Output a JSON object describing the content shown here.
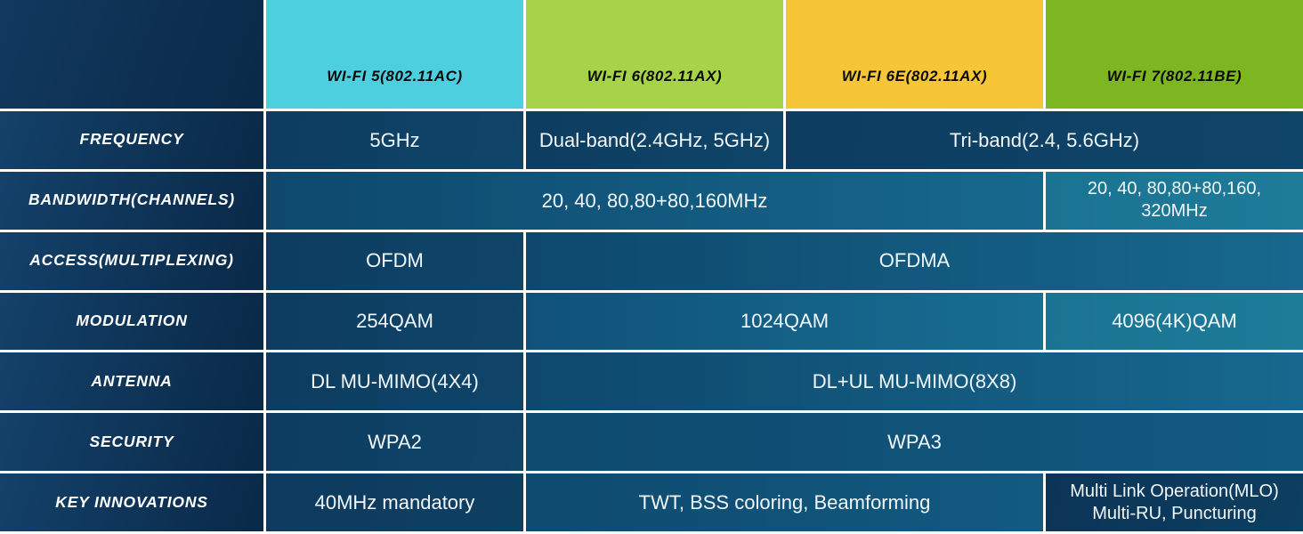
{
  "colors": {
    "header_wifi5": "#4ECFE0",
    "header_wifi6": "#A6D348",
    "header_wifi6e": "#F6C636",
    "header_wifi7": "#7CB721",
    "highlight_cell_teal": "#1C7493",
    "row_header_navy": "#0D3456",
    "grid_line": "#FFFFFF",
    "cell_text": "#F2F7FA",
    "header_text": "#0B0B0B"
  },
  "columns": [
    {
      "label": "WI-FI 5(802.11AC)",
      "color": "#4ECFE0"
    },
    {
      "label": "WI-FI 6(802.11AX)",
      "color": "#A6D348"
    },
    {
      "label": "WI-FI 6E(802.11AX)",
      "color": "#F6C636"
    },
    {
      "label": "WI-FI 7(802.11BE)",
      "color": "#7CB721"
    }
  ],
  "rows": [
    {
      "label": "FREQUENCY",
      "cells": [
        {
          "text": "5GHz"
        },
        {
          "text": "Dual-band(2.4GHz, 5GHz)"
        },
        {
          "text": "Tri-band(2.4, 5.6GHz)"
        }
      ]
    },
    {
      "label": "BANDWIDTH(CHANNELS)",
      "cells": [
        {
          "text": "20, 40, 80,80+80,160MHz"
        },
        {
          "lines": [
            "20, 40, 80,80+80,160,",
            "320MHz"
          ]
        }
      ]
    },
    {
      "label": "ACCESS(MULTIPLEXING)",
      "cells": [
        {
          "text": "OFDM"
        },
        {
          "text": "OFDMA"
        }
      ]
    },
    {
      "label": "MODULATION",
      "cells": [
        {
          "text": "254QAM"
        },
        {
          "text": "1024QAM"
        },
        {
          "text": "4096(4K)QAM"
        }
      ]
    },
    {
      "label": "ANTENNA",
      "cells": [
        {
          "text": "DL MU-MIMO(4X4)"
        },
        {
          "text": "DL+UL MU-MIMO(8X8)"
        }
      ]
    },
    {
      "label": "SECURITY",
      "cells": [
        {
          "text": "WPA2"
        },
        {
          "text": "WPA3"
        }
      ]
    },
    {
      "label": "KEY INNOVATIONS",
      "cells": [
        {
          "text": "40MHz mandatory"
        },
        {
          "text": "TWT, BSS coloring, Beamforming"
        },
        {
          "lines": [
            "Multi Link Operation(MLO)",
            "Multi-RU, Puncturing"
          ]
        }
      ]
    }
  ],
  "chart_data": {
    "type": "table",
    "title": "Wi-Fi generations comparison",
    "columns": [
      "WI-FI 5(802.11AC)",
      "WI-FI 6(802.11AX)",
      "WI-FI 6E(802.11AX)",
      "WI-FI 7(802.11BE)"
    ],
    "rows": [
      {
        "label": "FREQUENCY",
        "values": [
          "5GHz",
          "Dual-band(2.4GHz, 5GHz)",
          "Tri-band(2.4, 5.6GHz)",
          "Tri-band(2.4, 5.6GHz)"
        ]
      },
      {
        "label": "BANDWIDTH(CHANNELS)",
        "values": [
          "20, 40, 80,80+80,160MHz",
          "20, 40, 80,80+80,160MHz",
          "20, 40, 80,80+80,160MHz",
          "20, 40, 80,80+80,160, 320MHz"
        ]
      },
      {
        "label": "ACCESS(MULTIPLEXING)",
        "values": [
          "OFDM",
          "OFDMA",
          "OFDMA",
          "OFDMA"
        ]
      },
      {
        "label": "MODULATION",
        "values": [
          "254QAM",
          "1024QAM",
          "1024QAM",
          "4096(4K)QAM"
        ]
      },
      {
        "label": "ANTENNA",
        "values": [
          "DL MU-MIMO(4X4)",
          "DL+UL MU-MIMO(8X8)",
          "DL+UL MU-MIMO(8X8)",
          "DL+UL MU-MIMO(8X8)"
        ]
      },
      {
        "label": "SECURITY",
        "values": [
          "WPA2",
          "WPA3",
          "WPA3",
          "WPA3"
        ]
      },
      {
        "label": "KEY INNOVATIONS",
        "values": [
          "40MHz mandatory",
          "TWT, BSS coloring, Beamforming",
          "TWT, BSS coloring, Beamforming",
          "Multi Link Operation(MLO) Multi-RU, Puncturing"
        ]
      }
    ]
  }
}
